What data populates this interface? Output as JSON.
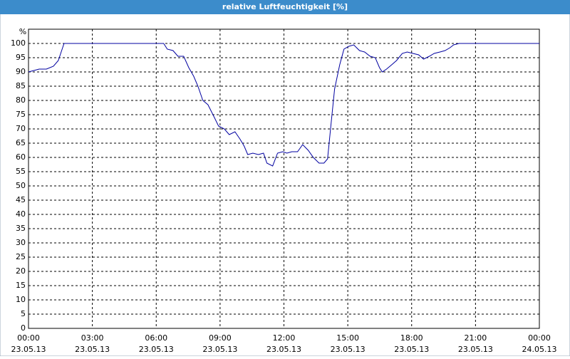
{
  "chart_data": {
    "type": "line",
    "title": "relative Luftfeuchtigkeit [%]",
    "y_label": "%",
    "x": [
      0,
      0.5,
      0.84,
      1.17,
      1.4,
      1.67,
      6.35,
      6.52,
      6.79,
      7.02,
      7.29,
      7.53,
      7.76,
      7.96,
      8.19,
      8.43,
      8.7,
      8.93,
      9.2,
      9.43,
      9.7,
      9.93,
      10.13,
      10.3,
      10.54,
      10.8,
      11.04,
      11.2,
      11.47,
      11.7,
      11.94,
      12.14,
      12.37,
      12.64,
      12.88,
      13.14,
      13.38,
      13.65,
      13.88,
      14.05,
      14.21,
      14.38,
      14.62,
      14.82,
      15.05,
      15.28,
      15.55,
      15.79,
      16.05,
      16.29,
      16.49,
      16.62,
      16.82,
      17.06,
      17.29,
      17.56,
      17.79,
      18.06,
      18.33,
      18.56,
      18.83,
      19.06,
      19.33,
      19.57,
      19.8,
      19.97,
      20.23,
      24
    ],
    "series": [
      {
        "name": "relative Luftfeuchtigkeit",
        "color": "#0000a0",
        "values": [
          90,
          91,
          91,
          92,
          94,
          100,
          100,
          98,
          97.5,
          95.5,
          95.5,
          91.5,
          88.5,
          85,
          80,
          78.5,
          74.5,
          71,
          70,
          68,
          69,
          66.5,
          64,
          61,
          61.5,
          61,
          61.5,
          58,
          57,
          61.5,
          62,
          61.5,
          62,
          62,
          64.5,
          62.5,
          60,
          58,
          58,
          59.5,
          71.5,
          84,
          92.5,
          98,
          99,
          99.5,
          97.5,
          97,
          95.5,
          95,
          91.5,
          90,
          91,
          92.5,
          94,
          96.5,
          97,
          96.5,
          96,
          94.5,
          95.5,
          96.5,
          97,
          97.5,
          98.5,
          99.5,
          100,
          100
        ]
      }
    ],
    "xlim": [
      0,
      24
    ],
    "xticks": [
      {
        "value": 0,
        "label": "00:00"
      },
      {
        "value": 3,
        "label": "03:00"
      },
      {
        "value": 6,
        "label": "06:00"
      },
      {
        "value": 9,
        "label": "09:00"
      },
      {
        "value": 12,
        "label": "12:00"
      },
      {
        "value": 15,
        "label": "15:00"
      },
      {
        "value": 18,
        "label": "18:00"
      },
      {
        "value": 21,
        "label": "21:00"
      },
      {
        "value": 24,
        "label": "00:00"
      }
    ],
    "xtick_dates": [
      "23.05.13",
      "23.05.13",
      "23.05.13",
      "23.05.13",
      "23.05.13",
      "23.05.13",
      "23.05.13",
      "23.05.13",
      "24.05.13"
    ],
    "ylim": [
      0,
      105
    ],
    "yticks": [
      0,
      5,
      10,
      15,
      20,
      25,
      30,
      35,
      40,
      45,
      50,
      55,
      60,
      65,
      70,
      75,
      80,
      85,
      90,
      95,
      100
    ],
    "grid": true
  }
}
